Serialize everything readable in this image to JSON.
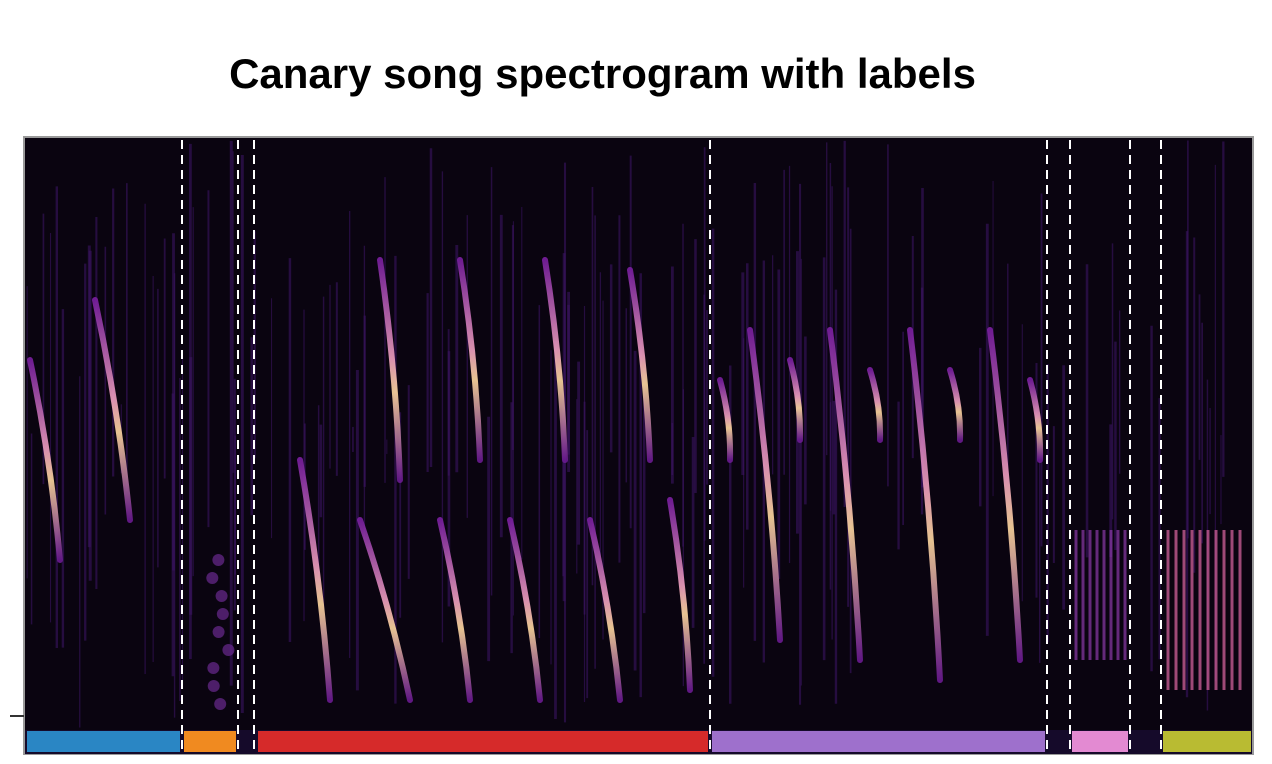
{
  "title": "Canary song spectrogram with labels"
}
